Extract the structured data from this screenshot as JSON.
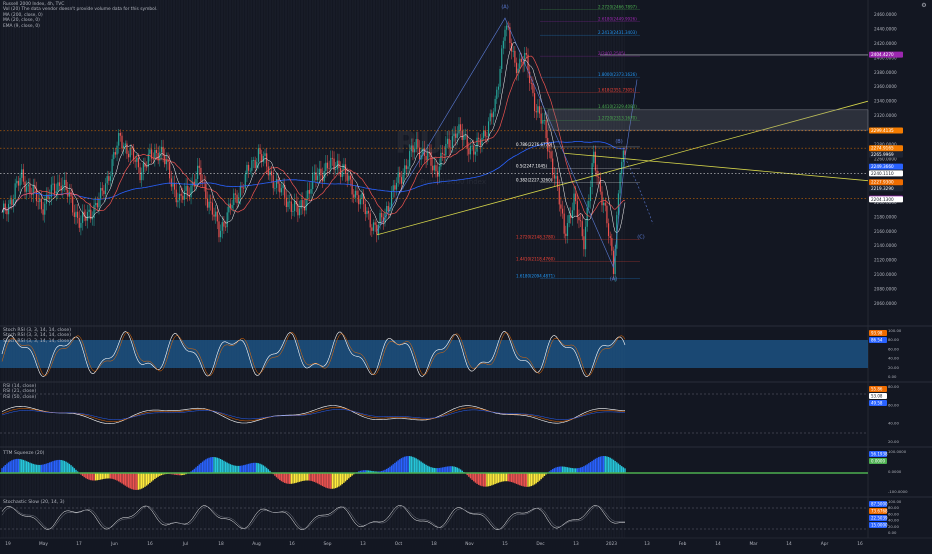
{
  "chart_data": {
    "type": "candlestick",
    "symbol_title": "Russell 2000 Index, 4h, TVC",
    "watermark": "RUT",
    "watermark_sub": "Russell 2000 Index",
    "legend": [
      "Vol (20)  The data vendor doesn't provide volume data for this symbol.",
      "MA (200, close, 0)",
      "MA (20, close, 0)",
      "EMA (9, close, 0)"
    ],
    "x_tick_labels": [
      "19",
      "May",
      "17",
      "Jun",
      "16",
      "Jul",
      "18",
      "Aug",
      "16",
      "Sep",
      "13",
      "Oct",
      "18",
      "Nov",
      "15",
      "Dec",
      "13",
      "2023",
      "13",
      "Feb",
      "14",
      "Mar",
      "14",
      "Apr",
      "16"
    ],
    "y_axis_ticks": [
      "2460.0000",
      "2440.0000",
      "2420.0000",
      "2400.0000",
      "2380.0000",
      "2360.0000",
      "2340.0000",
      "2320.0000",
      "2300.0000",
      "2280.0000",
      "2260.0000",
      "2240.0000",
      "2220.0000",
      "2200.0000",
      "2180.0000",
      "2160.0000",
      "2140.0000",
      "2120.0000",
      "2100.0000",
      "2080.0000",
      "2060.0000"
    ],
    "price_badges": [
      {
        "text": "2404.4270",
        "color": "#9c27b0"
      },
      {
        "text": "2299.4135",
        "color": "#f57c00"
      },
      {
        "text": "2274.9165",
        "color": "#f57c00"
      },
      {
        "text": "2265.9969",
        "color": "#1e2433"
      },
      {
        "text": "2249.3660",
        "color": "#2962ff"
      },
      {
        "text": "2240.1110",
        "color": "#ffffff"
      },
      {
        "text": "2219.3290",
        "color": "#1e2433"
      },
      {
        "text": "2227.9300",
        "color": "#ef6c00"
      },
      {
        "text": "2205.1138",
        "color": "#9c27b0"
      },
      {
        "text": "2204.1300",
        "color": "#ffffff"
      }
    ],
    "elliott_labels": [
      "(A)",
      "(B)",
      "(C)",
      "(A)"
    ],
    "fib_levels": [
      {
        "text": "2.2720(2466.7897)",
        "color": "#4caf50"
      },
      {
        "text": "2.6180(2449.9926)",
        "color": "#9c27b0"
      },
      {
        "text": "2.2413(2431.3403)",
        "color": "#2196f3"
      },
      {
        "text": "2(2402.2505)",
        "color": "#9c27b0"
      },
      {
        "text": "1.8000(2373.1626)",
        "color": "#2196f3"
      },
      {
        "text": "1.618(2351.7305)",
        "color": "#f44336"
      },
      {
        "text": "1.4410(2329.4080)",
        "color": "#4caf50"
      },
      {
        "text": "1.2720(2313.1670)",
        "color": "#4caf50"
      },
      {
        "text": "0.786(2276.6770)",
        "color": "#ffffff"
      },
      {
        "text": "0.5(2247.1045)",
        "color": "#ffffff"
      },
      {
        "text": "0.382(2227.3260)",
        "color": "#ffffff"
      },
      {
        "text": "1.2720(2148.3780)",
        "color": "#f44336"
      },
      {
        "text": "1.4410(2118.4760)",
        "color": "#f44336"
      },
      {
        "text": "1.6180(2094.4871)",
        "color": "#2196f3"
      }
    ],
    "panes": [
      {
        "title_lines": [
          "Stoch RSI (3, 3, 14, 14, close)",
          "Stoch RSI (3, 3, 14, 14, close)",
          "Stoch RSI (3, 3, 14, 14, close)"
        ],
        "badges": [
          {
            "text": "93.98",
            "color": "#ef6c00"
          },
          {
            "text": "86.54",
            "color": "#2962ff"
          }
        ],
        "axis": [
          "100.00",
          "80.00",
          "60.00",
          "40.00",
          "20.00",
          "0.00"
        ]
      },
      {
        "title_lines": [
          "RSI (14, close)",
          "RSI (21, close)",
          "RSI (50, close)"
        ],
        "badges": [
          {
            "text": "55.86",
            "color": "#ef6c00"
          },
          {
            "text": "53.08",
            "color": "#ffffff"
          },
          {
            "text": "49.58",
            "color": "#2962ff"
          }
        ],
        "axis": [
          "80.00",
          "60.00",
          "40.00",
          "20.00"
        ]
      },
      {
        "title_lines": [
          "TTM Squeeze (20)"
        ],
        "badges": [
          {
            "text": "56.1938",
            "color": "#2962ff"
          },
          {
            "text": "0.0000",
            "color": "#4caf50"
          }
        ],
        "axis": [
          "100.0000",
          "0.0000",
          "-100.0000"
        ]
      },
      {
        "title_lines": [
          "Stochastic Slow (20, 14, 3)"
        ],
        "badges": [
          {
            "text": "87.5000",
            "color": "#2962ff"
          },
          {
            "text": "73.6768",
            "color": "#ef6c00"
          },
          {
            "text": "22.5039",
            "color": "#2962ff"
          },
          {
            "text": "15.0000",
            "color": "#2962ff"
          }
        ],
        "axis": [
          "100.00",
          "80.00",
          "60.00",
          "40.00",
          "20.00",
          "0.00"
        ]
      }
    ],
    "colors": {
      "background": "#131722",
      "up": "#26a69a",
      "down": "#ef5350",
      "ma200": "#2962ff",
      "ma20": "#ef5350",
      "ema9": "#ffffff",
      "trendline": "#d4d44a",
      "stoch_band": "#1e5a8f"
    }
  }
}
